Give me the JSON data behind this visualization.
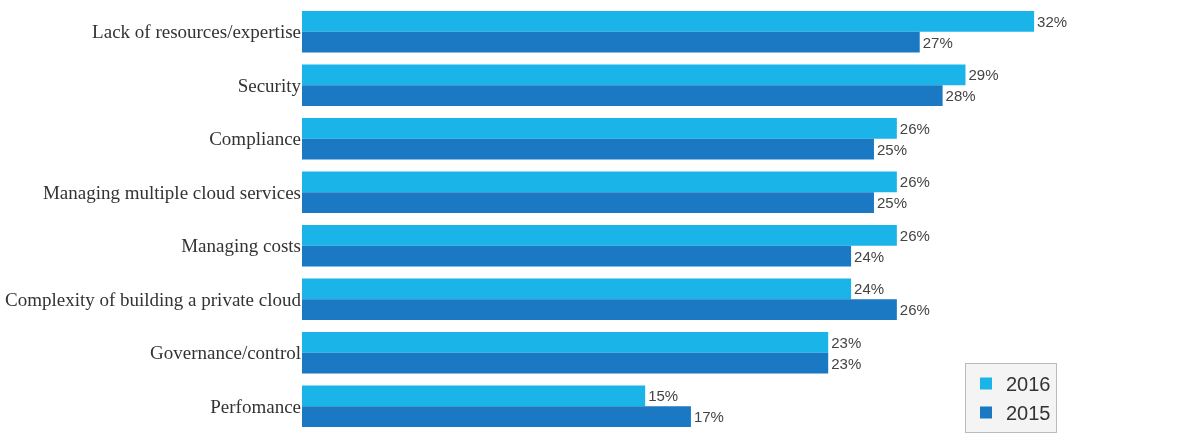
{
  "chart_data": {
    "type": "bar",
    "orientation": "horizontal",
    "categories": [
      "Lack of resources/expertise",
      "Security",
      "Compliance",
      "Managing multiple cloud services",
      "Managing costs",
      "Complexity of building a private cloud",
      "Governance/control",
      "Perfomance"
    ],
    "series": [
      {
        "name": "2016",
        "color": "#1ab4e8",
        "values": [
          32,
          29,
          26,
          26,
          26,
          24,
          23,
          15
        ],
        "value_labels": [
          "32%",
          "29%",
          "26%",
          "26%",
          "26%",
          "24%",
          "23%",
          "15%"
        ]
      },
      {
        "name": "2015",
        "color": "#1b78c2",
        "values": [
          27,
          28,
          25,
          25,
          24,
          26,
          23,
          17
        ],
        "value_labels": [
          "27%",
          "28%",
          "25%",
          "25%",
          "24%",
          "26%",
          "23%",
          "17%"
        ]
      }
    ],
    "xlim": [
      0,
      33
    ],
    "legend": "bottom right",
    "tick_labels": "y"
  }
}
